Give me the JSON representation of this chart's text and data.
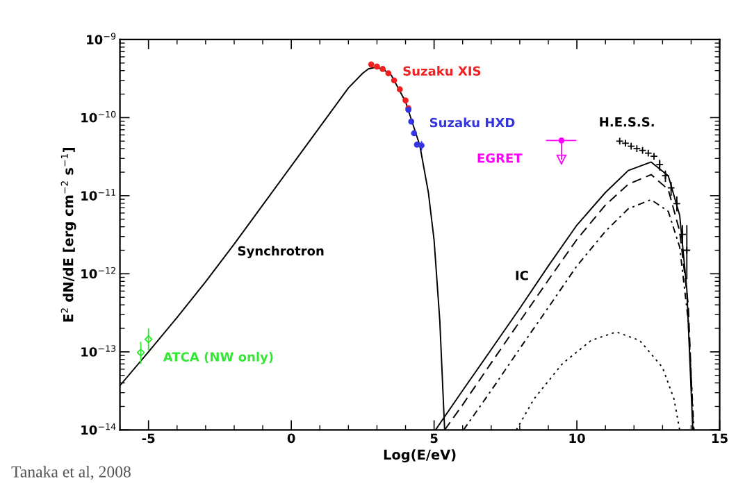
{
  "chart_data": {
    "type": "line",
    "xlabel": "Log(E/eV)",
    "ylabel": "E$^{2}$ dN/dE [erg cm$^{−2}$ s$^{−1}$]",
    "log": "y",
    "xlim": [
      -6,
      15
    ],
    "xticks": [
      -5,
      0,
      5,
      10,
      15
    ],
    "ylim": [
      1e-14,
      1e-09
    ],
    "yticks": [
      {
        "value": 1e-14,
        "label": "10$^{−14}$"
      },
      {
        "value": 1e-13,
        "label": "10$^{−13}$"
      },
      {
        "value": 1e-12,
        "label": "10$^{−12}$"
      },
      {
        "value": 1e-11,
        "label": "10$^{−11}$"
      },
      {
        "value": 1e-10,
        "label": "10$^{−10}$"
      },
      {
        "value": 1e-09,
        "label": "10$^{−9}$"
      }
    ],
    "grid": false,
    "series": [
      {
        "name": "Synchrotron",
        "color": "#000000",
        "line_style": "solid",
        "x": [
          -6,
          -5,
          -4,
          -3,
          -2,
          -1,
          0,
          1,
          2,
          2.5,
          2.7,
          2.93,
          3.2,
          3.5,
          4,
          4.5,
          4.8,
          5,
          5.2,
          5.37
        ],
        "values": [
          3.7e-14,
          1e-13,
          2.75e-13,
          7.9e-13,
          2.4e-12,
          7.6e-12,
          2.4e-11,
          7.6e-11,
          2.4e-10,
          3.7e-10,
          4.2e-10,
          4.4e-10,
          4.2e-10,
          3.5e-10,
          1.6e-10,
          4.4e-11,
          1.1e-11,
          2.7e-12,
          2.5e-13,
          1e-14
        ]
      },
      {
        "name": "IC",
        "color": "#000000",
        "line_style": "solid",
        "x": [
          5.05,
          6,
          7,
          8,
          9,
          10,
          11,
          11.8,
          12.6,
          13.2,
          13.6,
          13.85,
          14.06
        ],
        "values": [
          1e-14,
          3.2e-14,
          1.07e-13,
          3.6e-13,
          1.26e-12,
          4.2e-12,
          1.1e-11,
          2.1e-11,
          2.7e-11,
          1.8e-11,
          5.6e-12,
          6.3e-13,
          1e-14
        ]
      },
      {
        "color": "#000000",
        "line_style": "dashed",
        "x": [
          5.37,
          6,
          7,
          8,
          9,
          10,
          11,
          11.8,
          12.6,
          13.2,
          13.6,
          13.9,
          14.08
        ],
        "values": [
          1e-14,
          2.1e-14,
          7.2e-14,
          2.45e-13,
          8.3e-13,
          2.75e-12,
          7.6e-12,
          1.4e-11,
          1.86e-11,
          1.2e-11,
          3.5e-12,
          4e-13,
          1e-14
        ]
      },
      {
        "color": "#000000",
        "line_style": "dashdot",
        "x": [
          6.03,
          7,
          8,
          9,
          10,
          11,
          11.8,
          12.6,
          13.2,
          13.6,
          13.9,
          14.1
        ],
        "values": [
          1e-14,
          3.2e-14,
          1.1e-13,
          3.7e-13,
          1.26e-12,
          3.5e-12,
          6.8e-12,
          8.9e-12,
          6.3e-12,
          2.2e-12,
          2.5e-13,
          1e-14
        ]
      },
      {
        "color": "#000000",
        "line_style": "dotted",
        "x": [
          7.88,
          8.5,
          9.5,
          10.5,
          11.38,
          12.2,
          13,
          13.4,
          13.6
        ],
        "values": [
          1e-14,
          2.5e-14,
          7.1e-14,
          1.4e-13,
          1.8e-13,
          1.4e-13,
          6.3e-14,
          2.5e-14,
          1e-14
        ]
      },
      {
        "name": "Suzaku XIS",
        "type": "scatter",
        "marker": "circle",
        "color": "#f02020",
        "x": [
          2.8,
          3.0,
          3.2,
          3.4,
          3.6,
          3.8,
          4.0,
          4.1
        ],
        "values": [
          4.8e-10,
          4.5e-10,
          4.2e-10,
          3.7e-10,
          3e-10,
          2.3e-10,
          1.66e-10,
          1.32e-10
        ]
      },
      {
        "name": "Suzaku HXD",
        "type": "scatter",
        "marker": "circle",
        "color": "#3535e0",
        "x": [
          4.1,
          4.2,
          4.3,
          4.4,
          4.56
        ],
        "values": [
          1.26e-10,
          8.9e-11,
          6.3e-11,
          4.5e-11,
          4.4e-11
        ],
        "errors": [
          null,
          null,
          null,
          null,
          [
            3.8e-11,
            5e-11
          ]
        ]
      },
      {
        "name": "EGRET",
        "type": "scatter",
        "marker": "circle",
        "color": "#ff00ff",
        "x": [
          9.46
        ],
        "values": [
          5.1e-11
        ],
        "xerrors": [
          [
            8.92,
            9.98
          ]
        ],
        "errors": [
          [
            2.9e-11,
            5.1e-11
          ]
        ]
      },
      {
        "name": "H.E.S.S.",
        "type": "scatter",
        "marker": "cross",
        "color": "#000000",
        "x": [
          11.5,
          11.7,
          11.9,
          12.1,
          12.3,
          12.5,
          12.7,
          12.9,
          13.1,
          13.3,
          13.5,
          13.7,
          13.85
        ],
        "values": [
          5e-11,
          4.7e-11,
          4.3e-11,
          4e-11,
          3.8e-11,
          3.5e-11,
          3.2e-11,
          2.5e-11,
          1.8e-11,
          1.26e-11,
          7.9e-12,
          3.2e-12,
          2e-12
        ],
        "errors": [
          null,
          null,
          null,
          null,
          null,
          null,
          null,
          [
            2.1e-11,
            2.9e-11
          ],
          [
            1.5e-11,
            2.1e-11
          ],
          [
            1e-11,
            1.5e-11
          ],
          [
            6.3e-12,
            9.8e-12
          ],
          [
            2.4e-12,
            4.2e-12
          ],
          [
            8.5e-13,
            4.2e-12
          ]
        ]
      },
      {
        "name": "ATCA (NW only)",
        "type": "scatter",
        "marker": "diamond",
        "color": "#33e833",
        "x": [
          -5.27,
          -5.0
        ],
        "values": [
          9.8e-14,
          1.45e-13
        ],
        "errors": [
          [
            7e-14,
            1.35e-13
          ],
          [
            1.05e-13,
            2e-13
          ]
        ]
      }
    ],
    "annotations": [
      "Tanaka et al, 2008"
    ]
  }
}
